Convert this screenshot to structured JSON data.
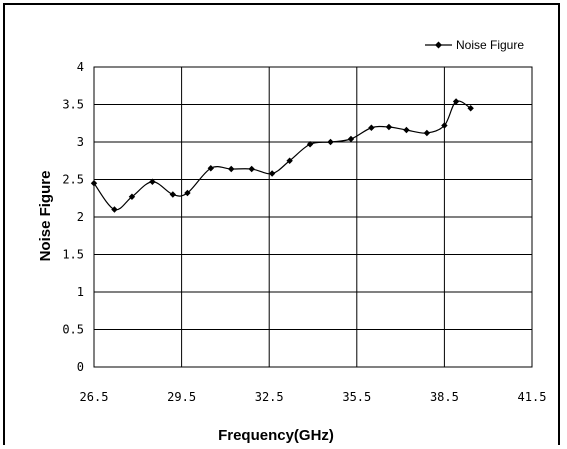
{
  "chart_data": {
    "type": "line",
    "xlabel": "Frequency(GHz)",
    "ylabel": "Noise Figure",
    "xlim": [
      26.5,
      41.5
    ],
    "ylim": [
      0,
      4
    ],
    "xticks": [
      "26.5",
      "29.5",
      "32.5",
      "35.5",
      "38.5",
      "41.5"
    ],
    "yticks": [
      "0",
      "0.5",
      "1",
      "1.5",
      "2",
      "2.5",
      "3",
      "3.5",
      "4"
    ],
    "grid": true,
    "legend_position": "top-right",
    "series": [
      {
        "name": "Noise Figure",
        "color": "#000000",
        "marker": "diamond",
        "x": [
          26.5,
          27.2,
          27.8,
          28.5,
          29.2,
          29.7,
          30.5,
          31.2,
          31.9,
          32.6,
          33.2,
          33.9,
          34.6,
          35.3,
          36.0,
          36.6,
          37.2,
          37.9,
          38.5,
          38.9,
          39.4
        ],
        "y": [
          2.45,
          2.1,
          2.27,
          2.47,
          2.3,
          2.32,
          2.65,
          2.64,
          2.64,
          2.58,
          2.75,
          2.97,
          3.0,
          3.04,
          3.19,
          3.2,
          3.16,
          3.12,
          3.22,
          3.54,
          3.45
        ]
      }
    ]
  }
}
